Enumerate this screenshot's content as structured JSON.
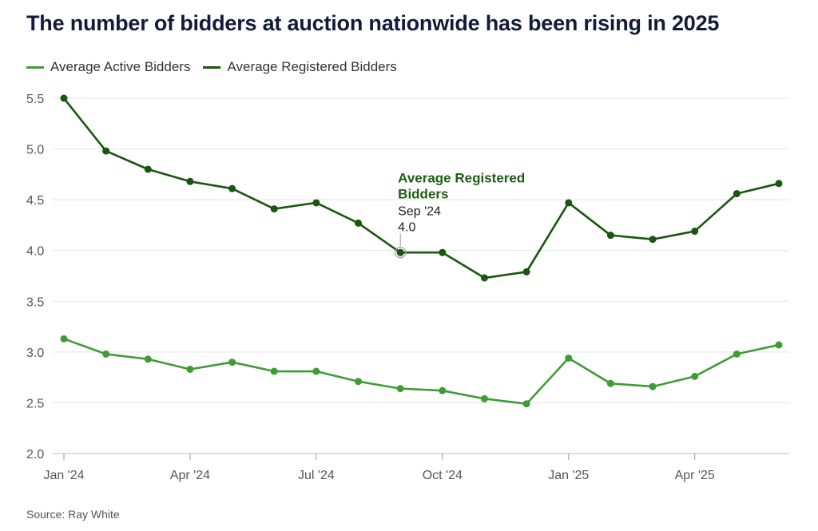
{
  "title": "The number of bidders at auction nationwide has been rising in 2025",
  "source": "Source: Ray White",
  "legend": [
    {
      "label": "Average Active Bidders",
      "color": "#3f9c35"
    },
    {
      "label": "Average Registered Bidders",
      "color": "#19560f"
    }
  ],
  "annotation": {
    "series": "Average Registered Bidders",
    "line1": "Average Registered",
    "line2": "Bidders",
    "date": "Sep '24",
    "value": "4.0",
    "index": 8
  },
  "chart_data": {
    "type": "line",
    "title": "The number of bidders at auction nationwide has been rising in 2025",
    "x": [
      "2024-01",
      "2024-02",
      "2024-03",
      "2024-04",
      "2024-05",
      "2024-06",
      "2024-07",
      "2024-08",
      "2024-09",
      "2024-10",
      "2024-11",
      "2024-12",
      "2025-01",
      "2025-02",
      "2025-03",
      "2025-04",
      "2025-05",
      "2025-06"
    ],
    "x_tick_labels": [
      "Jan '24",
      "Apr '24",
      "Jul '24",
      "Oct '24",
      "Jan '25",
      "Apr '25"
    ],
    "x_tick_indices": [
      0,
      3,
      6,
      9,
      12,
      15
    ],
    "ylim": [
      2.0,
      5.5
    ],
    "y_ticks": [
      "2.0",
      "2.5",
      "3.0",
      "3.5",
      "4.0",
      "4.5",
      "5.0",
      "5.5"
    ],
    "grid": true,
    "legend_position": "top-left",
    "series": [
      {
        "name": "Average Active Bidders",
        "color": "#3f9c35",
        "values": [
          3.13,
          2.98,
          2.93,
          2.83,
          2.9,
          2.81,
          2.81,
          2.71,
          2.64,
          2.62,
          2.54,
          2.49,
          2.94,
          2.69,
          2.66,
          2.76,
          2.98,
          3.07
        ]
      },
      {
        "name": "Average Registered Bidders",
        "color": "#19560f",
        "values": [
          5.5,
          4.98,
          4.8,
          4.68,
          4.61,
          4.41,
          4.47,
          4.27,
          3.98,
          3.98,
          3.73,
          3.79,
          4.47,
          4.15,
          4.11,
          4.19,
          4.56,
          4.66
        ]
      }
    ]
  }
}
